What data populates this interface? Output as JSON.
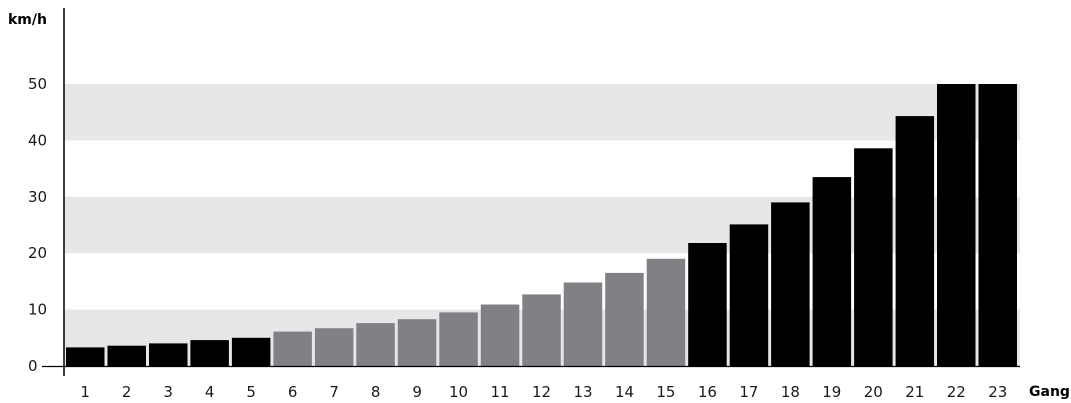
{
  "chart_data": {
    "type": "bar",
    "ylabel": "km/h",
    "xlabel": "Gang",
    "ylim": [
      0,
      55
    ],
    "grid": "alternating horizontal bands",
    "categories": [
      "1",
      "2",
      "3",
      "4",
      "5",
      "6",
      "7",
      "8",
      "9",
      "10",
      "11",
      "12",
      "13",
      "14",
      "15",
      "16",
      "17",
      "18",
      "19",
      "20",
      "21",
      "22",
      "23"
    ],
    "values": [
      3.3,
      3.6,
      4.0,
      4.6,
      5.0,
      6.1,
      6.7,
      7.6,
      8.3,
      9.5,
      10.9,
      12.7,
      14.8,
      16.5,
      19.0,
      21.8,
      25.1,
      29.0,
      33.5,
      38.6,
      44.3,
      50.0,
      50.0
    ],
    "bar_groups": [
      "dark",
      "dark",
      "dark",
      "dark",
      "dark",
      "gray",
      "gray",
      "gray",
      "gray",
      "gray",
      "gray",
      "gray",
      "gray",
      "gray",
      "gray",
      "dark",
      "dark",
      "dark",
      "dark",
      "dark",
      "dark",
      "dark",
      "dark"
    ],
    "y_ticks": [
      "0",
      "10",
      "20",
      "30",
      "40",
      "50"
    ],
    "colors": {
      "dark": "#000000",
      "gray": "#808184",
      "band": "#e6e7e8",
      "axis": "#000000"
    }
  }
}
